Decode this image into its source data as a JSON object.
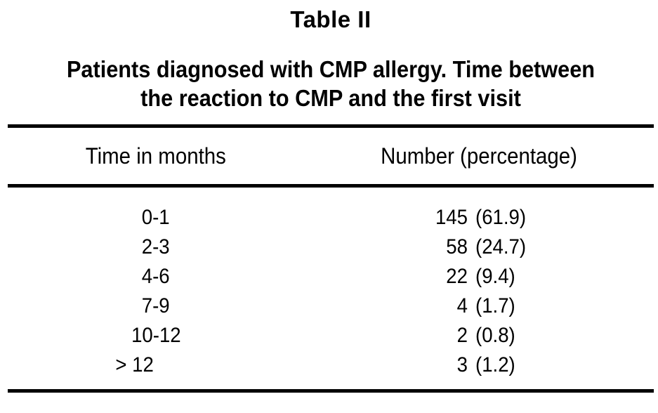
{
  "page": {
    "background_color": "#ffffff",
    "text_color": "#000000",
    "rule_color": "#000000"
  },
  "table": {
    "label": "Table II",
    "caption_lines": [
      "Patients diagnosed with CMP allergy. Time between",
      "the reaction to CMP and the first visit"
    ],
    "columns": [
      "Time in months",
      "Number (percentage)"
    ],
    "rows": [
      {
        "time": "0-1",
        "count": "145",
        "percentage": "(61.9)"
      },
      {
        "time": "2-3",
        "count": "58",
        "percentage": "(24.7)"
      },
      {
        "time": "4-6",
        "count": "22",
        "percentage": "(9.4)"
      },
      {
        "time": "7-9",
        "count": "4",
        "percentage": "(1.7)"
      },
      {
        "time": "10-12",
        "count": "2",
        "percentage": "(0.8)"
      },
      {
        "time": "> 12",
        "count": "3",
        "percentage": "(1.2)"
      }
    ]
  },
  "chart_data": {
    "type": "table",
    "title": "Table II",
    "caption": "Patients diagnosed with CMP allergy. Time between the reaction to CMP and the first visit",
    "columns": [
      "Time in months",
      "Number (percentage)"
    ],
    "rows": [
      [
        "0-1",
        "145 (61.9)"
      ],
      [
        "2-3",
        "58 (24.7)"
      ],
      [
        "4-6",
        "22 (9.4)"
      ],
      [
        "7-9",
        "4 (1.7)"
      ],
      [
        "10-12",
        "2 (0.8)"
      ],
      [
        "> 12",
        "3 (1.2)"
      ]
    ],
    "counts": [
      145,
      58,
      22,
      4,
      2,
      3
    ],
    "percentages": [
      61.9,
      24.7,
      9.4,
      1.7,
      0.8,
      1.2
    ]
  }
}
